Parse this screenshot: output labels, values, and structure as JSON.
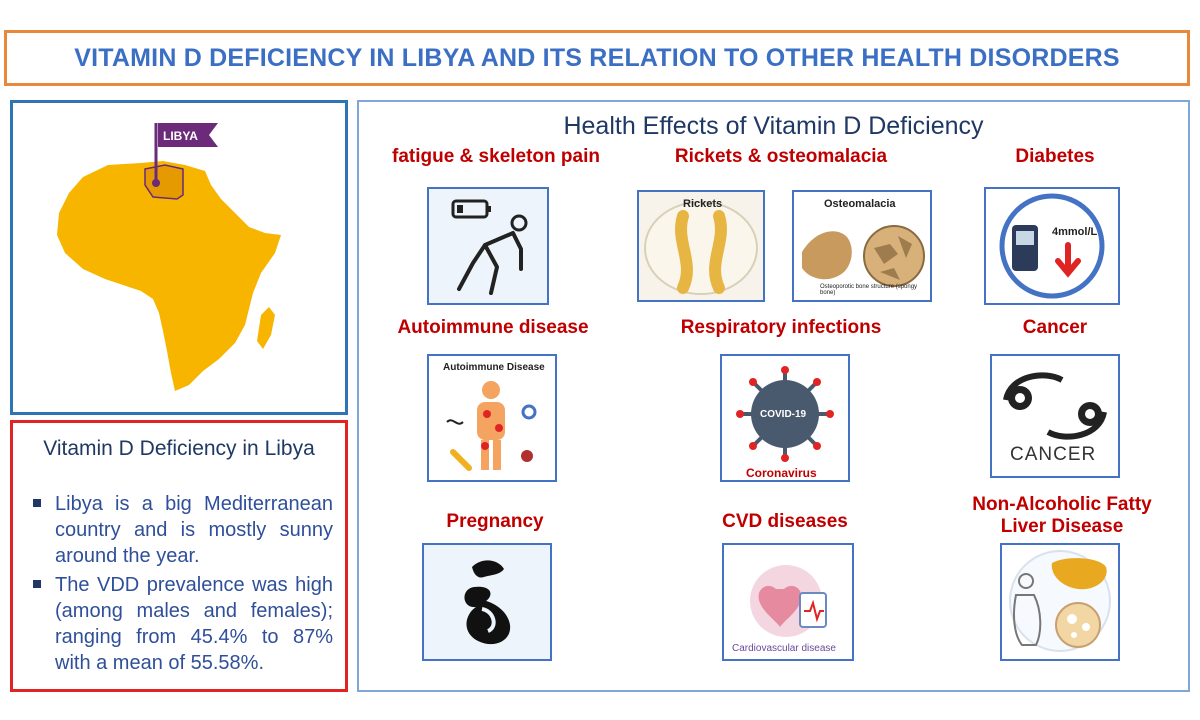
{
  "title": "VITAMIN D DEFICIENCY IN LIBYA AND ITS RELATION TO OTHER HEALTH DISORDERS",
  "map": {
    "flag_label": "LIBYA"
  },
  "info": {
    "title": "Vitamin D Deficiency in Libya",
    "bullets": [
      "Libya is a big Mediterranean country and is mostly sunny around the year.",
      "The VDD prevalence was high (among males and females); ranging from 45.4% to 87% with a mean of 55.58%."
    ]
  },
  "health": {
    "title": "Health Effects of Vitamin D Deficiency",
    "labels": {
      "fatigue": "fatigue & skeleton pain",
      "rickets": "Rickets & osteomalacia",
      "diabetes": "Diabetes",
      "autoimmune": "Autoimmune disease",
      "respiratory": "Respiratory infections",
      "cancer": "Cancer",
      "pregnancy": "Pregnancy",
      "cvd": "CVD diseases",
      "nafld": "Non-Alcoholic Fatty Liver Disease"
    },
    "tile_text": {
      "rickets": "Rickets",
      "osteomalacia": "Osteomalacia",
      "osteo_caption": "Osteoporotic bone structure (spongy bone)",
      "glucose": "4mmol/L",
      "autoimmune": "Autoimmune Disease",
      "covid": "COVID-19",
      "coronavirus": "Coronavirus",
      "cancer": "CANCER",
      "cardio": "Cardiovascular disease"
    }
  },
  "colors": {
    "title_border": "#e8883a",
    "title_text": "#3b6fc4",
    "label_red": "#c00000",
    "africa": "#f7b500",
    "libya": "#e49a00",
    "flag": "#6b2a7a"
  }
}
